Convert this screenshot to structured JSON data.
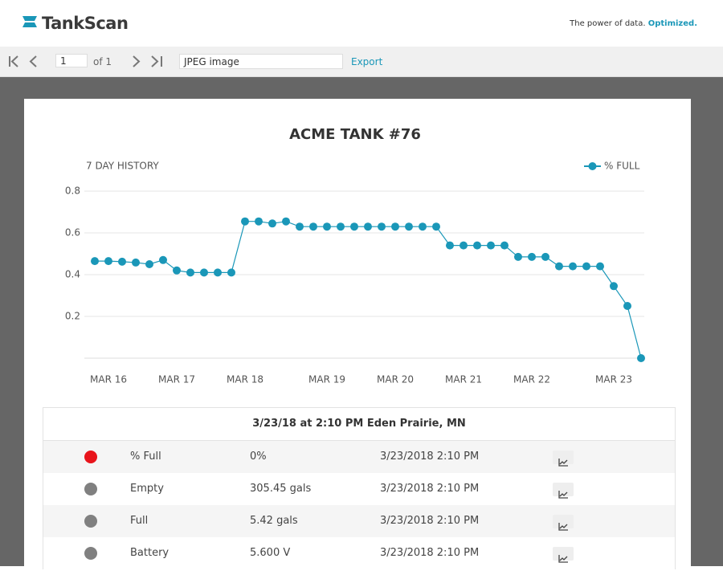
{
  "header": {
    "logo": "TankScan",
    "tagline": "The power of data.",
    "tagline_emphasis": "Optimized."
  },
  "toolbar": {
    "page": "1",
    "page_of": "of 1",
    "format": "JPEG image",
    "export": "Export"
  },
  "chart_data": {
    "type": "line",
    "title": "ACME TANK #76",
    "subtitle": "7 DAY HISTORY",
    "categories": [
      null,
      "MAR 16",
      null,
      null,
      null,
      null,
      "MAR 17",
      null,
      null,
      null,
      null,
      "MAR 18",
      null,
      null,
      null,
      null,
      null,
      "MAR 19",
      null,
      null,
      null,
      null,
      "MAR 20",
      null,
      null,
      null,
      null,
      "MAR 21",
      null,
      null,
      null,
      null,
      "MAR 22",
      null,
      null,
      null,
      null,
      null,
      "MAR 23",
      null,
      null
    ],
    "series": [
      {
        "name": "% FULL",
        "color": "#1a97b8",
        "values": [
          0.465,
          0.465,
          0.462,
          0.458,
          0.45,
          0.47,
          0.42,
          0.41,
          0.41,
          0.41,
          0.41,
          0.655,
          0.655,
          0.645,
          0.655,
          0.63,
          0.63,
          0.63,
          0.63,
          0.63,
          0.63,
          0.63,
          0.63,
          0.63,
          0.63,
          0.63,
          0.54,
          0.54,
          0.54,
          0.54,
          0.54,
          0.485,
          0.485,
          0.485,
          0.44,
          0.44,
          0.44,
          0.44,
          0.345,
          0.25,
          0
        ]
      }
    ],
    "ylim": [
      0,
      0.8
    ],
    "yticks": [
      0.2,
      0.4,
      0.6,
      0.8
    ],
    "grid": true,
    "legend": "top-right"
  },
  "table": {
    "title": "3/23/18 at 2:10 PM Eden Prairie, MN",
    "rows": [
      {
        "status_color": "#e8141b",
        "name": "% Full",
        "value": "0%",
        "time": "3/23/2018 2:10 PM"
      },
      {
        "status_color": "#808080",
        "name": "Empty",
        "value": "305.45 gals",
        "time": "3/23/2018 2:10 PM"
      },
      {
        "status_color": "#808080",
        "name": "Full",
        "value": "5.42 gals",
        "time": "3/23/2018 2:10 PM"
      },
      {
        "status_color": "#808080",
        "name": "Battery",
        "value": "5.600 V",
        "time": "3/23/2018 2:10 PM"
      }
    ]
  }
}
